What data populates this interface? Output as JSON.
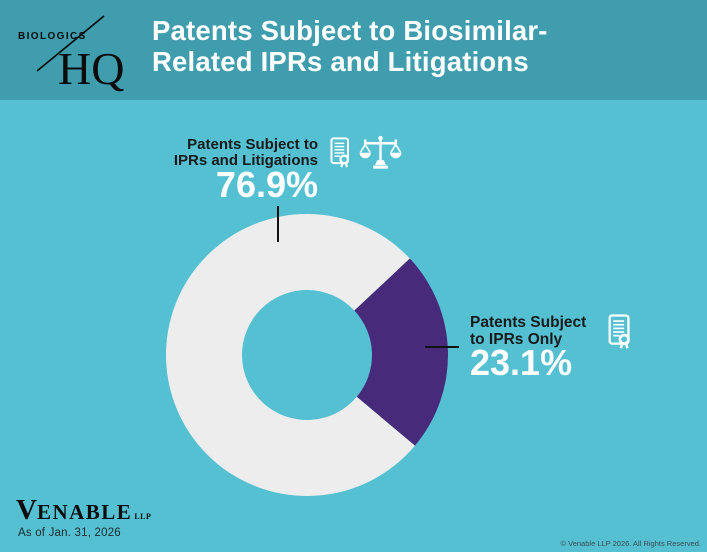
{
  "header": {
    "logo": {
      "top_text": "BIOLOGICS",
      "bottom_text": "HQ"
    },
    "title_line1": "Patents Subject to Biosimilar-",
    "title_line2": "Related IPRs and Litigations"
  },
  "chart_data": {
    "type": "pie",
    "subtype": "donut",
    "title": "Patents Subject to Biosimilar-Related IPRs and Litigations",
    "units": "percent",
    "slices": [
      {
        "label": "Patents Subject to IPRs and Litigations",
        "value": 76.9,
        "color": "#EDEDED"
      },
      {
        "label": "Patents Subject to IPRs Only",
        "value": 23.1,
        "color": "#482A7B"
      }
    ],
    "rotation_clockwise_from_top_deg": 130,
    "inner_radius_ratio": 0.46,
    "legend_position": "callouts"
  },
  "callouts": {
    "left": {
      "line1": "Patents Subject to",
      "line2": "IPRs and Litigations",
      "value": "76.9%",
      "icons": [
        "certificate-icon",
        "scales-of-justice-icon"
      ]
    },
    "right": {
      "line1": "Patents Subject",
      "line2": "to IPRs Only",
      "value": "23.1%",
      "icons": [
        "certificate-icon"
      ]
    }
  },
  "footer": {
    "brand_initial": "V",
    "brand_rest": "ENABLE",
    "brand_suffix": "LLP",
    "as_of": "As of Jan. 31, 2026",
    "copyright": "© Venable LLP 2026. All Rights Reserved."
  },
  "colors": {
    "header-bg": "#409DAD",
    "body-bg": "#54C0D2",
    "slice-light": "#EDEDED",
    "slice-purple": "#482A7B",
    "text-dark": "#1A1A1A",
    "text-white": "#FFFFFF",
    "logo-ink": "#0B0B0B",
    "icon": "#FFFFFF"
  }
}
